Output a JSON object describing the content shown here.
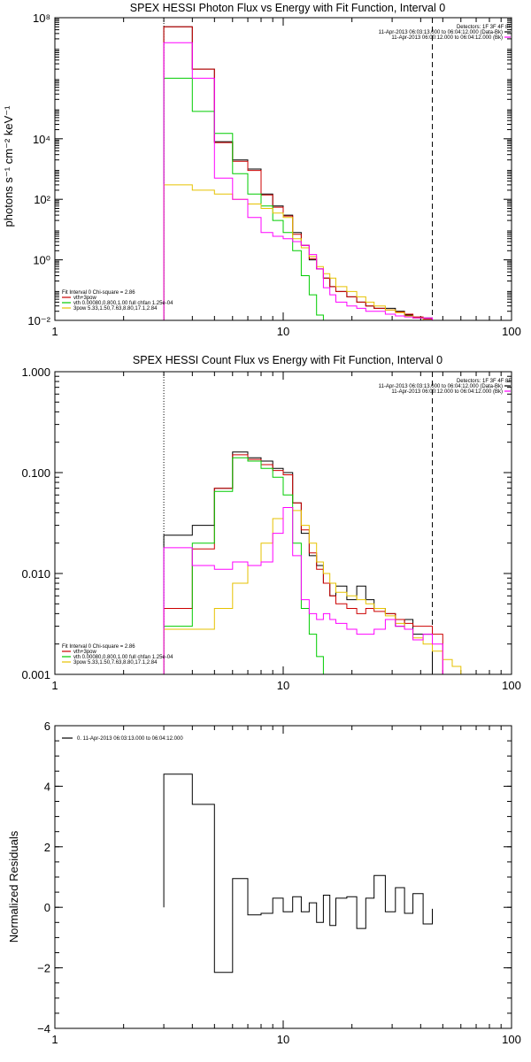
{
  "colors": {
    "data": "#000000",
    "total": "#cc0000",
    "thermal": "#00cc00",
    "power": "#e6c200",
    "background": "#ff00ff"
  },
  "chart_data": [
    {
      "type": "line",
      "title": "SPEX HESSI Photon Flux vs Energy with Fit Function, Interval 0",
      "ylabel": "photons s⁻¹ cm⁻² keV⁻¹",
      "xlabel": "",
      "xscale": "log",
      "yscale": "log",
      "xlim": [
        1,
        100
      ],
      "ylim": [
        0.01,
        100000000
      ],
      "xticks": [
        {
          "v": 1,
          "label": "1"
        },
        {
          "v": 10,
          "label": "10"
        },
        {
          "v": 100,
          "label": "100"
        }
      ],
      "yticks": [
        {
          "v": 0.01,
          "label": "10⁻²"
        },
        {
          "v": 1,
          "label": "10⁰"
        },
        {
          "v": 100,
          "label": "10²"
        },
        {
          "v": 10000,
          "label": "10⁴"
        },
        {
          "v": 100000000,
          "label": "10⁸"
        }
      ],
      "vlines": [
        {
          "x": 3,
          "style": "dotted"
        },
        {
          "x": 45,
          "style": "dashed"
        }
      ],
      "legend_top": [
        "Detectors: 1F 3F 4F 8F",
        "11-Apr-2013 06:03:13.000 to 06:04:12.000 (Data-Bk)",
        "11-Apr-2013 06:00:12.000 to 06:04:12.000 (Bk)"
      ],
      "legend_top_colors": [
        "",
        "#000000",
        "#ff00ff"
      ],
      "legend_bottom": [
        "Fit Interval 0   Chi-square = 2.86",
        "vth+3pow",
        "vth 0.00080,0.800,1.00  full chfan 1.25e-04",
        "3pow 5.33,1.50,7.63,8.80,17.1,2.84"
      ],
      "legend_bottom_colors": [
        "",
        "#cc0000",
        "#00cc00",
        "#e6c200"
      ],
      "edges": [
        3,
        4,
        5,
        6,
        7,
        8,
        9,
        10,
        11,
        12,
        13,
        14,
        15,
        16,
        17,
        19,
        21,
        23,
        25,
        28,
        31,
        34,
        37,
        41,
        45,
        50
      ],
      "series": [
        {
          "color": "#000000",
          "values": [
            50000000.0,
            2000000.0,
            8000,
            2000,
            1000,
            150,
            60,
            30,
            8,
            3,
            1,
            0.5,
            0.25,
            0.13,
            0.09,
            0.06,
            0.04,
            0.03,
            0.025,
            0.025,
            0.02,
            0.015,
            0.012,
            0.012,
            0.01
          ]
        },
        {
          "color": "#cc0000",
          "values": [
            50000000.0,
            2000000.0,
            7500,
            1800,
            900,
            140,
            55,
            28,
            7,
            3,
            1.1,
            0.5,
            0.25,
            0.13,
            0.09,
            0.06,
            0.04,
            0.03,
            0.025,
            0.022,
            0.019,
            0.016,
            0.013,
            0.011,
            0.009
          ]
        },
        {
          "color": "#00cc00",
          "values": [
            1000000.0,
            80000,
            15000,
            700,
            150,
            60,
            20,
            8,
            2,
            0.3,
            0.07,
            0.015,
            0.0025
          ]
        },
        {
          "color": "#e6c200",
          "values": [
            300,
            200,
            150,
            100,
            70,
            50,
            35,
            25,
            5,
            2.5,
            1.3,
            0.6,
            0.35,
            0.25,
            0.13,
            0.09,
            0.06,
            0.04,
            0.03,
            0.022,
            0.018,
            0.014,
            0.012,
            0.01,
            0.007,
            0.005
          ]
        },
        {
          "color": "#ff00ff",
          "values": [
            15000000.0,
            1000000.0,
            500,
            100,
            25,
            8,
            6,
            5,
            4,
            3,
            1.5,
            0.5,
            0.12,
            0.07,
            0.04,
            0.03,
            0.025,
            0.02,
            0.02,
            0.016,
            0.014,
            0.013,
            0.012,
            0.012,
            0.01
          ]
        }
      ]
    },
    {
      "type": "line",
      "title": "SPEX HESSI Count Flux vs Energy with Fit Function, Interval 0",
      "ylabel": "",
      "xlabel": "",
      "xscale": "log",
      "yscale": "log",
      "xlim": [
        1,
        100
      ],
      "ylim": [
        0.001,
        1
      ],
      "xticks": [
        {
          "v": 1,
          "label": "1"
        },
        {
          "v": 10,
          "label": "10"
        },
        {
          "v": 100,
          "label": "100"
        }
      ],
      "yticks": [
        {
          "v": 0.001,
          "label": "0.001"
        },
        {
          "v": 0.01,
          "label": "0.010"
        },
        {
          "v": 0.1,
          "label": "0.100"
        },
        {
          "v": 1,
          "label": "1.000"
        }
      ],
      "vlines": [
        {
          "x": 3,
          "style": "dotted"
        },
        {
          "x": 45,
          "style": "dashed"
        }
      ],
      "legend_top": [
        "Detectors: 1F 3F 4F 8F",
        "11-Apr-2013 06:03:13.000 to 06:04:12.000 (Data-Bk)",
        "11-Apr-2013 06:00:12.000 to 06:04:12.000 (Bk)"
      ],
      "legend_top_colors": [
        "",
        "#000000",
        "#ff00ff"
      ],
      "legend_bottom": [
        "Fit Interval 0   Chi-square = 2.86",
        "vth+3pow",
        "vth 0.00080,0.800,1.00  full chfan 1.25e-04",
        "3pow 5.33,1.50,7.63,8.80,17.1,2.84"
      ],
      "legend_bottom_colors": [
        "",
        "#cc0000",
        "#00cc00",
        "#e6c200"
      ],
      "edges": [
        3,
        4,
        5,
        6,
        7,
        8,
        9,
        10,
        11,
        12,
        13,
        14,
        15,
        16,
        17,
        19,
        21,
        23,
        25,
        28,
        31,
        34,
        37,
        41,
        45,
        50,
        55,
        60,
        66
      ],
      "series": [
        {
          "color": "#000000",
          "values": [
            0.024,
            0.03,
            0.07,
            0.16,
            0.14,
            0.13,
            0.11,
            0.1,
            0.05,
            0.025,
            0.015,
            0.012,
            0.008,
            0.006,
            0.0075,
            0.0055,
            0.0075,
            0.0055,
            0.0045,
            0.004,
            0.003,
            0.0035,
            0.0025,
            0.0025,
            0.001
          ]
        },
        {
          "color": "#cc0000",
          "values": [
            0.0045,
            0.0175,
            0.07,
            0.15,
            0.135,
            0.12,
            0.105,
            0.095,
            0.05,
            0.027,
            0.016,
            0.011,
            0.008,
            0.006,
            0.005,
            0.0045,
            0.004,
            0.0045,
            0.0042,
            0.004,
            0.0035,
            0.0032,
            0.003,
            0.003,
            0.0025
          ]
        },
        {
          "color": "#00cc00",
          "values": [
            0.003,
            0.02,
            0.065,
            0.14,
            0.13,
            0.11,
            0.09,
            0.06,
            0.02,
            0.0045,
            0.0025,
            0.0015,
            0.001
          ]
        },
        {
          "color": "#e6c200",
          "values": [
            0.0028,
            0.0028,
            0.0045,
            0.008,
            0.012,
            0.02,
            0.035,
            0.045,
            0.042,
            0.03,
            0.02,
            0.013,
            0.01,
            0.008,
            0.0065,
            0.006,
            0.0055,
            0.005,
            0.0045,
            0.0038,
            0.0032,
            0.0028,
            0.0023,
            0.002,
            0.0017,
            0.0014,
            0.0012,
            0.001
          ]
        },
        {
          "color": "#ff00ff",
          "values": [
            0.018,
            0.012,
            0.011,
            0.013,
            0.012,
            0.013,
            0.025,
            0.045,
            0.015,
            0.0055,
            0.004,
            0.0035,
            0.004,
            0.0035,
            0.0032,
            0.0028,
            0.0025,
            0.0025,
            0.0028,
            0.0035,
            0.003,
            0.0028,
            0.0022,
            0.0025,
            0.002
          ]
        }
      ]
    },
    {
      "type": "line",
      "title": "",
      "ylabel": "Normalized Residuals",
      "xlabel": "",
      "xscale": "log",
      "yscale": "linear",
      "xlim": [
        1,
        100
      ],
      "ylim": [
        -4,
        6
      ],
      "xticks": [
        {
          "v": 1,
          "label": "1"
        },
        {
          "v": 10,
          "label": "10"
        },
        {
          "v": 100,
          "label": "100"
        }
      ],
      "yticks": [
        {
          "v": -4,
          "label": "−4"
        },
        {
          "v": -2,
          "label": "−2"
        },
        {
          "v": 0,
          "label": "0"
        },
        {
          "v": 2,
          "label": "2"
        },
        {
          "v": 4,
          "label": "4"
        },
        {
          "v": 6,
          "label": "6"
        }
      ],
      "legend": "0. 11-Apr-2013 06:03:13.000 to 06:04:12.000",
      "edges": [
        3,
        4,
        5,
        6,
        7,
        8,
        9,
        10,
        11,
        12,
        13,
        14,
        15,
        16,
        17,
        19,
        21,
        23,
        25,
        28,
        31,
        34,
        37,
        41,
        45
      ],
      "series": [
        {
          "color": "#000000",
          "values": [
            4.4,
            3.4,
            -2.15,
            0.95,
            -0.25,
            -0.2,
            0.3,
            -0.15,
            0.35,
            -0.15,
            0.15,
            -0.5,
            0.4,
            -0.6,
            0.3,
            0.35,
            -0.7,
            0.3,
            1.05,
            -0.15,
            0.65,
            -0.2,
            0.45,
            -0.55,
            -0.05
          ]
        }
      ]
    }
  ]
}
